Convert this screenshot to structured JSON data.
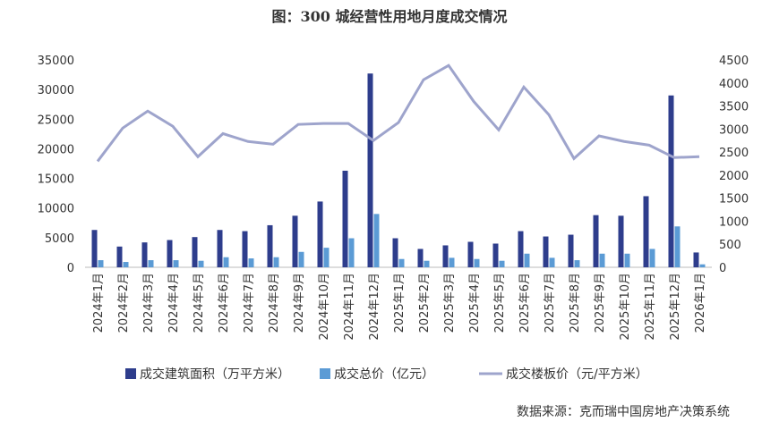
{
  "chart_data": {
    "type": "bar",
    "title": "图：300 城经营性用地月度成交情况",
    "source": "数据来源：克而瑞中国房地产决策系统",
    "categories": [
      "2024年1月",
      "2024年2月",
      "2024年3月",
      "2024年4月",
      "2024年5月",
      "2024年6月",
      "2024年7月",
      "2024年8月",
      "2024年9月",
      "2024年10月",
      "2024年11月",
      "2024年12月",
      "2025年1月",
      "2025年2月",
      "2025年3月",
      "2025年4月",
      "2025年5月",
      "2025年6月",
      "2025年7月",
      "2025年8月",
      "2025年9月",
      "2025年10月",
      "2025年11月",
      "2025年12月",
      "2026年1月"
    ],
    "series": [
      {
        "name": "成交建筑面积（万平方米）",
        "color": "#2e3d8c",
        "type": "bar",
        "values": [
          6300,
          3500,
          4200,
          4600,
          5100,
          6300,
          6100,
          7100,
          8700,
          11100,
          16300,
          32700,
          4900,
          3100,
          3700,
          4300,
          4000,
          6100,
          5200,
          5500,
          8800,
          8700,
          12000,
          29000,
          2500
        ]
      },
      {
        "name": "成交总价（亿元）",
        "color": "#5b9bd5",
        "type": "bar",
        "values": [
          1200,
          900,
          1200,
          1200,
          1100,
          1700,
          1500,
          1700,
          2600,
          3300,
          4900,
          9000,
          1400,
          1100,
          1600,
          1400,
          1100,
          2300,
          1600,
          1200,
          2300,
          2300,
          3100,
          6900,
          500
        ]
      },
      {
        "name": "成交楼板价（元/平方米）",
        "color": "#9ea4cc",
        "type": "line",
        "axis": "y2",
        "values": [
          2300,
          3020,
          3390,
          3060,
          2400,
          2900,
          2730,
          2670,
          3100,
          3120,
          3120,
          2750,
          3140,
          4070,
          4380,
          3600,
          2980,
          3910,
          3310,
          2360,
          2850,
          2730,
          2650,
          2380,
          2400
        ]
      }
    ],
    "ylim": [
      0,
      35000
    ],
    "yticks": [
      0,
      5000,
      10000,
      15000,
      20000,
      25000,
      30000,
      35000
    ],
    "y2lim": [
      0,
      4500
    ],
    "y2ticks": [
      0,
      500,
      1000,
      1500,
      2000,
      2500,
      3000,
      3500,
      4000,
      4500
    ]
  }
}
